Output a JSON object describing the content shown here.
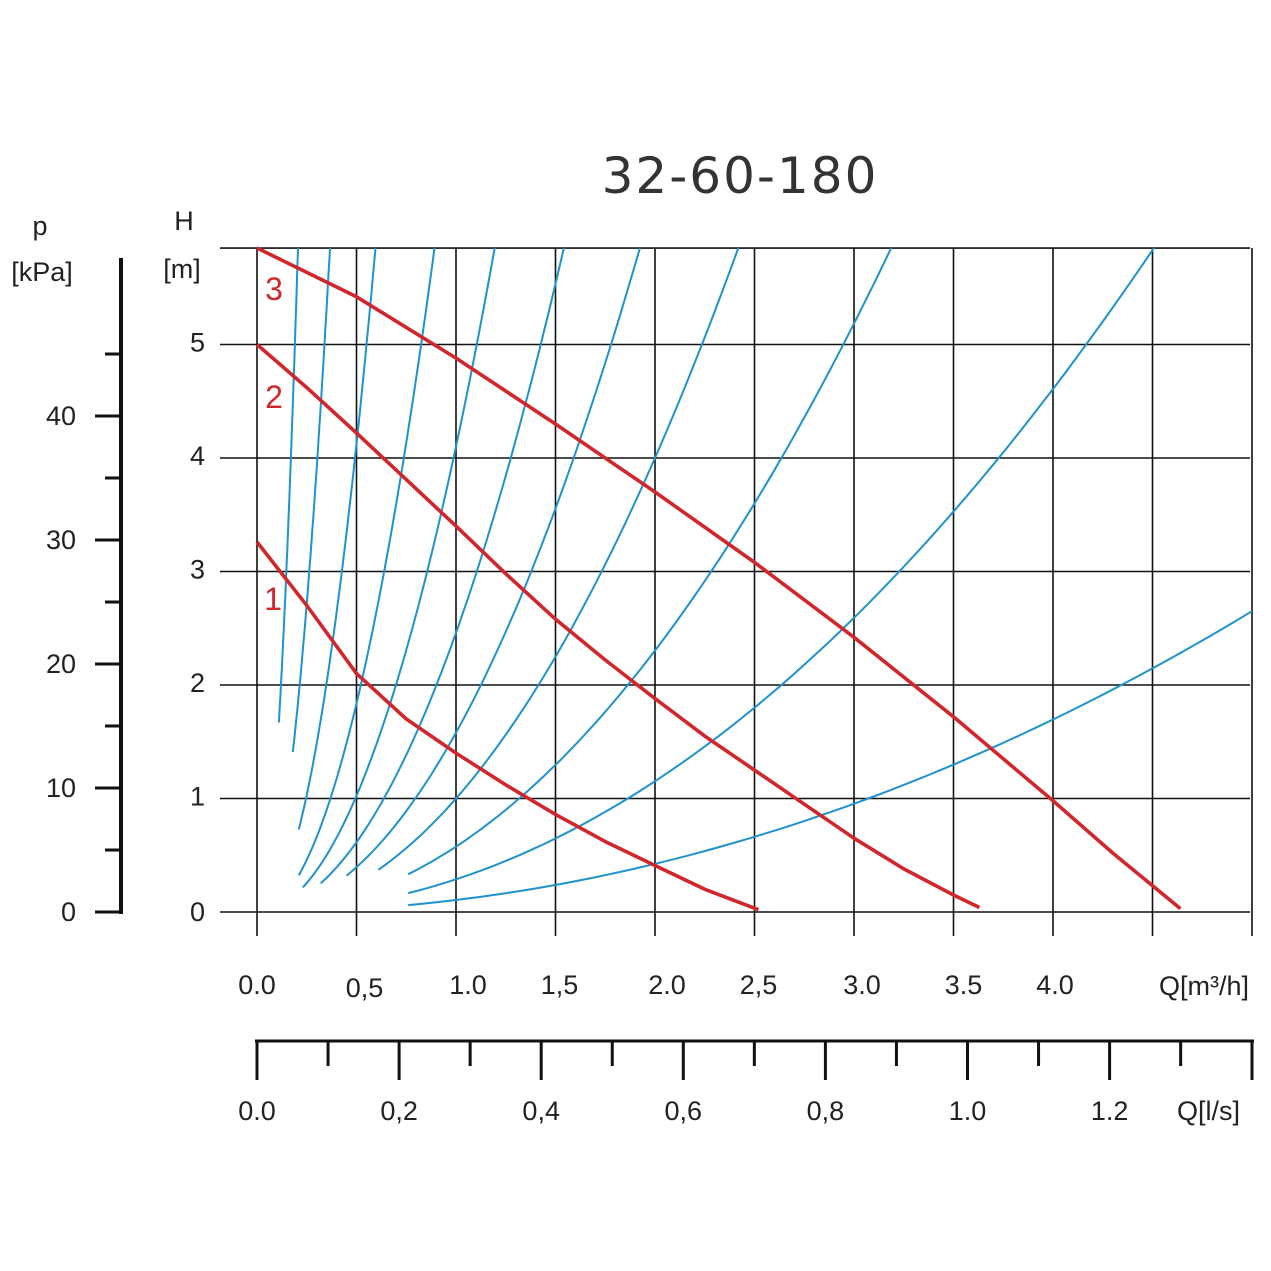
{
  "chart_data": {
    "type": "line",
    "title": "32-60-180",
    "ylabel_left": "p",
    "ylabel_left_unit": "[kPa]",
    "ylabel": "H",
    "ylabel_unit": "[m]",
    "xlabel": "Q[m³/h]",
    "xlabel_secondary": "Q[l/s]",
    "xlim": [
      0,
      5.0
    ],
    "ylim": [
      0,
      5.85
    ],
    "x_ticks": [
      {
        "value": 0.0,
        "label": "0.0"
      },
      {
        "value": 0.5,
        "label": "0,5"
      },
      {
        "value": 1.0,
        "label": "1.0"
      },
      {
        "value": 1.5,
        "label": "1,5"
      },
      {
        "value": 2.0,
        "label": "2.0"
      },
      {
        "value": 2.5,
        "label": "2,5"
      },
      {
        "value": 3.0,
        "label": "3.0"
      },
      {
        "value": 3.5,
        "label": "3.5"
      },
      {
        "value": 4.0,
        "label": "4.0"
      }
    ],
    "x_gridlines": [
      0,
      0.5,
      1.0,
      1.5,
      2.0,
      2.5,
      3.0,
      3.5,
      4.0,
      4.5,
      5.0
    ],
    "y_ticks": [
      {
        "value": 0,
        "label": "0"
      },
      {
        "value": 1,
        "label": "1"
      },
      {
        "value": 2,
        "label": "2"
      },
      {
        "value": 3,
        "label": "3"
      },
      {
        "value": 4,
        "label": "4"
      },
      {
        "value": 5,
        "label": "5"
      }
    ],
    "y_gridlines": [
      0,
      1,
      2,
      3,
      4,
      5,
      5.85
    ],
    "p_ticks": [
      {
        "value": 0,
        "label": "0"
      },
      {
        "value": 10,
        "label": "10"
      },
      {
        "value": 20,
        "label": "20"
      },
      {
        "value": 30,
        "label": "30"
      },
      {
        "value": 40,
        "label": "40"
      }
    ],
    "p_minor_ticks": [
      5,
      15,
      25,
      35,
      45
    ],
    "ls_ticks": [
      {
        "value": 0.0,
        "label": "0.0"
      },
      {
        "value": 0.2,
        "label": "0,2"
      },
      {
        "value": 0.4,
        "label": "0,4"
      },
      {
        "value": 0.6,
        "label": "0,6"
      },
      {
        "value": 0.8,
        "label": "0,8"
      },
      {
        "value": 1.0,
        "label": "1.0"
      },
      {
        "value": 1.2,
        "label": "1.2"
      }
    ],
    "ls_minor_ticks": [
      0.1,
      0.3,
      0.5,
      0.7,
      0.9,
      1.1,
      1.3
    ],
    "grid": true,
    "pump_color": "#d1262b",
    "system_color": "#1f92cf",
    "grid_color": "#111111",
    "series": [
      {
        "name": "1",
        "x": [
          0.0,
          0.25,
          0.5,
          0.75,
          1.0,
          1.25,
          1.5,
          1.75,
          2.0,
          2.25,
          2.52
        ],
        "y": [
          3.26,
          2.7,
          2.1,
          1.7,
          1.4,
          1.12,
          0.86,
          0.62,
          0.41,
          0.2,
          0.02
        ]
      },
      {
        "name": "2",
        "x": [
          0.0,
          0.25,
          0.5,
          0.75,
          1.0,
          1.25,
          1.5,
          1.75,
          2.0,
          2.25,
          2.5,
          2.75,
          3.0,
          3.25,
          3.5,
          3.63
        ],
        "y": [
          5.0,
          4.62,
          4.22,
          3.81,
          3.4,
          2.98,
          2.58,
          2.22,
          1.88,
          1.55,
          1.25,
          0.95,
          0.65,
          0.38,
          0.15,
          0.04
        ]
      },
      {
        "name": "3",
        "x": [
          0.0,
          0.5,
          1.0,
          1.5,
          2.0,
          2.5,
          3.0,
          3.5,
          4.0,
          4.3,
          4.64
        ],
        "y": [
          5.85,
          5.42,
          4.88,
          4.3,
          3.7,
          3.08,
          2.42,
          1.72,
          0.98,
          0.52,
          0.03
        ]
      }
    ],
    "system_curves": [
      {
        "k": 138,
        "q_start": 0.11
      },
      {
        "k": 43.5,
        "q_start": 0.18
      },
      {
        "k": 16.5,
        "q_start": 0.21
      },
      {
        "k": 7.35,
        "q_start": 0.21
      },
      {
        "k": 4.1,
        "q_start": 0.23
      },
      {
        "k": 2.46,
        "q_start": 0.32
      },
      {
        "k": 1.58,
        "q_start": 0.45
      },
      {
        "k": 1.0,
        "q_start": 0.61
      },
      {
        "k": 0.576,
        "q_start": 0.76
      },
      {
        "k": 0.288,
        "q_start": 0.76
      },
      {
        "k": 0.106,
        "q_start": 0.76
      }
    ]
  }
}
